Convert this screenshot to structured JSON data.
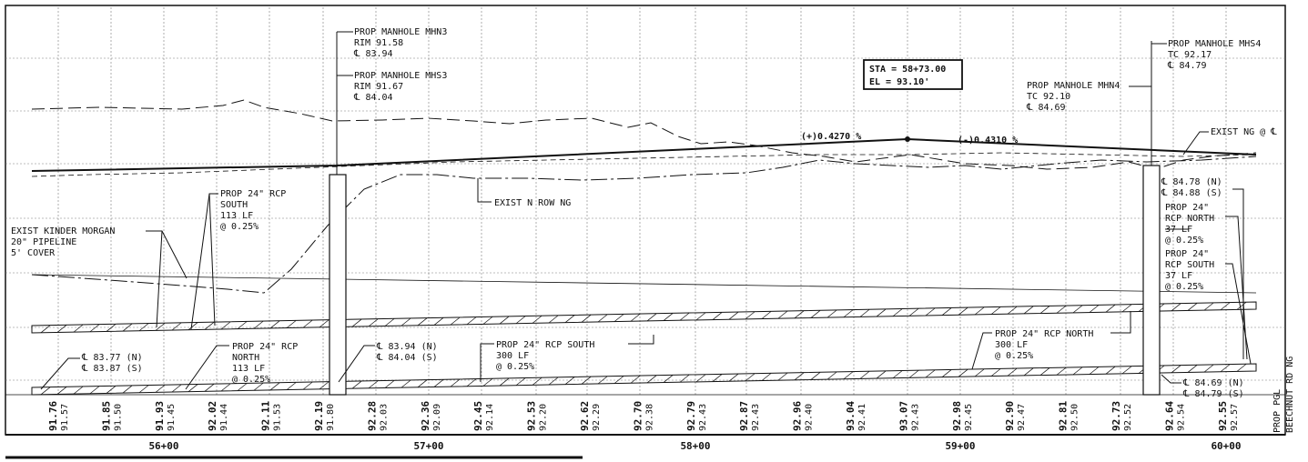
{
  "annotations": {
    "mhn3": [
      "PROP MANHOLE MHN3",
      "RIM 91.58",
      "℄ 83.94"
    ],
    "mhs3": [
      "PROP MANHOLE MHS3",
      "RIM 91.67",
      "℄ 84.04"
    ],
    "mhs4": [
      "PROP MANHOLE MHS4",
      "TC 92.17",
      "℄ 84.79"
    ],
    "mhn4": [
      "PROP MANHOLE MHN4",
      "TC 92.10",
      "℄ 84.69"
    ],
    "pvi": [
      "STA = 58+73.00",
      "EL  = 93.10'"
    ],
    "grade_left": "(+)0.4270 %",
    "grade_right": "(-)0.4310 %",
    "exist_ng": "EXIST NG @ ℄",
    "exist_n_row": "EXIST N ROW NG",
    "kinder": [
      "EXIST KINDER MORGAN",
      "20\" PIPELINE",
      "5' COVER"
    ],
    "rcp_south_left": [
      "PROP 24\" RCP",
      "SOUTH",
      "113 LF",
      "@ 0.25%"
    ],
    "rcp_north_left": [
      "PROP 24\" RCP",
      "NORTH",
      "113 LF",
      "@ 0.25%"
    ],
    "inv_left": [
      "℄ 83.77 (N)",
      "℄ 83.87 (S)"
    ],
    "inv_mh3": [
      "℄ 83.94 (N)",
      "℄ 84.04 (S)"
    ],
    "rcp_south_mid": [
      "PROP 24\" RCP SOUTH",
      "300 LF",
      "@ 0.25%"
    ],
    "rcp_north_mid": [
      "PROP 24\" RCP NORTH",
      "300 LF",
      "@ 0.25%"
    ],
    "inv_mh4_top": [
      "℄ 84.78 (N)",
      "℄ 84.88 (S)"
    ],
    "rcp_north_right": [
      "PROP 24\"",
      "RCP NORTH",
      "37 LF",
      "@ 0.25%"
    ],
    "rcp_south_right": [
      "PROP 24\"",
      "RCP SOUTH",
      "37 LF",
      "@ 0.25%"
    ],
    "inv_mh4_bot": [
      "℄ 84.69 (N)",
      "℄ 84.79 (S)"
    ],
    "side_label": [
      "PROP PGL",
      "BEECHNUT RD NG"
    ]
  },
  "elevations": [
    {
      "pgl": "91.76",
      "ng": "91.57"
    },
    {
      "pgl": "91.85",
      "ng": "91.50"
    },
    {
      "pgl": "91.93",
      "ng": "91.45"
    },
    {
      "pgl": "92.02",
      "ng": "91.44"
    },
    {
      "pgl": "92.11",
      "ng": "91.53"
    },
    {
      "pgl": "92.19",
      "ng": "91.80"
    },
    {
      "pgl": "92.28",
      "ng": "92.03"
    },
    {
      "pgl": "92.36",
      "ng": "92.09"
    },
    {
      "pgl": "92.45",
      "ng": "92.14"
    },
    {
      "pgl": "92.53",
      "ng": "92.20"
    },
    {
      "pgl": "92.62",
      "ng": "92.29"
    },
    {
      "pgl": "92.70",
      "ng": "92.38"
    },
    {
      "pgl": "92.79",
      "ng": "92.43"
    },
    {
      "pgl": "92.87",
      "ng": "92.43"
    },
    {
      "pgl": "92.96",
      "ng": "92.40"
    },
    {
      "pgl": "93.04",
      "ng": "92.41"
    },
    {
      "pgl": "93.07",
      "ng": "92.43"
    },
    {
      "pgl": "92.98",
      "ng": "92.45"
    },
    {
      "pgl": "92.90",
      "ng": "92.47"
    },
    {
      "pgl": "92.81",
      "ng": "92.50"
    },
    {
      "pgl": "92.73",
      "ng": "92.52"
    },
    {
      "pgl": "92.64",
      "ng": "92.54"
    },
    {
      "pgl": "92.55",
      "ng": "92.57"
    }
  ],
  "stations": [
    "56+00",
    "57+00",
    "58+00",
    "59+00",
    "60+00"
  ],
  "colors": {
    "ink": "#111111",
    "grid": "#7a7a7a",
    "background": "#ffffff"
  }
}
